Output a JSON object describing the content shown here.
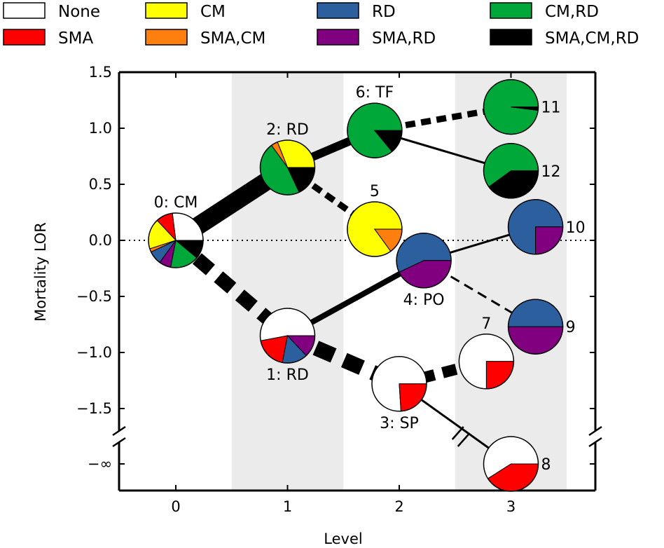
{
  "chart_data": {
    "type": "scatter",
    "subtype": "tree of pie-chart nodes",
    "xlabel": "Level",
    "ylabel": "Mortality LOR",
    "xlim": [
      -0.5,
      3.7
    ],
    "ylim": [
      -2.05,
      1.5
    ],
    "x_ticks": [
      "0",
      "1",
      "2",
      "3"
    ],
    "y_ticks": [
      {
        "value": 1.5,
        "label": "1.5"
      },
      {
        "value": 1.0,
        "label": "1.0"
      },
      {
        "value": 0.5,
        "label": "0.5"
      },
      {
        "value": 0.0,
        "label": "0.0"
      },
      {
        "value": -0.5,
        "label": "−0.5"
      },
      {
        "value": -1.0,
        "label": "−1.0"
      },
      {
        "value": -1.5,
        "label": "−1.5"
      },
      {
        "value": -2.0,
        "label": "−∞"
      }
    ],
    "shaded_levels": [
      1,
      3
    ],
    "grid": false,
    "reference_line": {
      "y": 0,
      "style": "dotted"
    },
    "axis_break": {
      "y": -1.75
    },
    "legend": {
      "position": "top",
      "entries": [
        {
          "key": "none",
          "label": "None",
          "color": "#ffffff"
        },
        {
          "key": "sma",
          "label": "SMA",
          "color": "#ff0000"
        },
        {
          "key": "cm",
          "label": "CM",
          "color": "#ffff00"
        },
        {
          "key": "sma_cm",
          "label": "SMA,CM",
          "color": "#ff7f0e"
        },
        {
          "key": "rd",
          "label": "RD",
          "color": "#2c5f9e"
        },
        {
          "key": "sma_rd",
          "label": "SMA,RD",
          "color": "#800080"
        },
        {
          "key": "cm_rd",
          "label": "CM,RD",
          "color": "#00a83a"
        },
        {
          "key": "sma_cm_rd",
          "label": "SMA,CM,RD",
          "color": "#000000"
        }
      ]
    },
    "nodes": [
      {
        "id": 0,
        "label": "0: CM",
        "x": 0.0,
        "y": 0.0,
        "label_pos": "above",
        "slices": [
          {
            "cat": "none",
            "value": 0.27
          },
          {
            "cat": "sma",
            "value": 0.1
          },
          {
            "cat": "cm",
            "value": 0.18
          },
          {
            "cat": "sma_cm",
            "value": 0.02
          },
          {
            "cat": "rd",
            "value": 0.08
          },
          {
            "cat": "sma_rd",
            "value": 0.07
          },
          {
            "cat": "cm_rd",
            "value": 0.17
          },
          {
            "cat": "sma_cm_rd",
            "value": 0.11
          }
        ]
      },
      {
        "id": 1,
        "label": "1: RD",
        "x": 1.0,
        "y": -0.85,
        "label_pos": "below",
        "slices": [
          {
            "cat": "none",
            "value": 0.53
          },
          {
            "cat": "sma",
            "value": 0.19
          },
          {
            "cat": "rd",
            "value": 0.15
          },
          {
            "cat": "sma_rd",
            "value": 0.13
          }
        ]
      },
      {
        "id": 2,
        "label": "2: RD",
        "x": 1.0,
        "y": 0.65,
        "label_pos": "above",
        "slices": [
          {
            "cat": "cm",
            "value": 0.31
          },
          {
            "cat": "sma_cm",
            "value": 0.04
          },
          {
            "cat": "cm_rd",
            "value": 0.47
          },
          {
            "cat": "sma_cm_rd",
            "value": 0.18
          }
        ]
      },
      {
        "id": 3,
        "label": "3: SP",
        "x": 2.0,
        "y": -1.28,
        "label_pos": "below",
        "slices": [
          {
            "cat": "none",
            "value": 0.76
          },
          {
            "cat": "sma",
            "value": 0.24
          }
        ]
      },
      {
        "id": 4,
        "label": "4: PO",
        "x": 2.22,
        "y": -0.18,
        "label_pos": "below",
        "slices": [
          {
            "cat": "rd",
            "value": 0.57
          },
          {
            "cat": "sma_rd",
            "value": 0.43
          }
        ]
      },
      {
        "id": 5,
        "label": "5",
        "x": 1.78,
        "y": 0.1,
        "label_pos": "above",
        "slices": [
          {
            "cat": "cm",
            "value": 0.85
          },
          {
            "cat": "sma_cm",
            "value": 0.15
          }
        ]
      },
      {
        "id": 6,
        "label": "6: TF",
        "x": 1.78,
        "y": 0.98,
        "label_pos": "above",
        "slices": [
          {
            "cat": "cm_rd",
            "value": 0.86
          },
          {
            "cat": "sma_cm_rd",
            "value": 0.14
          }
        ]
      },
      {
        "id": 7,
        "label": "7",
        "x": 2.78,
        "y": -1.08,
        "label_pos": "above",
        "slices": [
          {
            "cat": "none",
            "value": 0.75
          },
          {
            "cat": "sma",
            "value": 0.25
          }
        ]
      },
      {
        "id": 8,
        "label": "8",
        "x": 3.0,
        "y": -2.0,
        "label_pos": "right",
        "slices": [
          {
            "cat": "none",
            "value": 0.59
          },
          {
            "cat": "sma",
            "value": 0.41
          }
        ]
      },
      {
        "id": 9,
        "label": "9",
        "x": 3.22,
        "y": -0.77,
        "label_pos": "right",
        "slices": [
          {
            "cat": "rd",
            "value": 0.5
          },
          {
            "cat": "sma_rd",
            "value": 0.5
          }
        ]
      },
      {
        "id": 10,
        "label": "10",
        "x": 3.22,
        "y": 0.12,
        "label_pos": "right",
        "slices": [
          {
            "cat": "rd",
            "value": 0.75
          },
          {
            "cat": "sma_rd",
            "value": 0.25
          }
        ]
      },
      {
        "id": 11,
        "label": "11",
        "x": 3.0,
        "y": 1.19,
        "label_pos": "right",
        "slices": [
          {
            "cat": "cm_rd",
            "value": 0.98
          },
          {
            "cat": "sma_cm_rd",
            "value": 0.02
          }
        ]
      },
      {
        "id": 12,
        "label": "12",
        "x": 3.0,
        "y": 0.62,
        "label_pos": "right",
        "slices": [
          {
            "cat": "cm_rd",
            "value": 0.6
          },
          {
            "cat": "sma_cm_rd",
            "value": 0.4
          }
        ]
      }
    ],
    "edges": [
      {
        "from": 0,
        "to": 2,
        "weight": 26,
        "style": "solid"
      },
      {
        "from": 0,
        "to": 1,
        "weight": 20,
        "style": "dashed"
      },
      {
        "from": 2,
        "to": 6,
        "weight": 12,
        "style": "solid"
      },
      {
        "from": 2,
        "to": 5,
        "weight": 9,
        "style": "dashed"
      },
      {
        "from": 6,
        "to": 11,
        "weight": 9,
        "style": "dashed"
      },
      {
        "from": 6,
        "to": 12,
        "weight": 3,
        "style": "solid"
      },
      {
        "from": 1,
        "to": 4,
        "weight": 8,
        "style": "solid"
      },
      {
        "from": 1,
        "to": 3,
        "weight": 22,
        "style": "dashed"
      },
      {
        "from": 4,
        "to": 10,
        "weight": 3,
        "style": "solid"
      },
      {
        "from": 4,
        "to": 9,
        "weight": 3,
        "style": "dashed"
      },
      {
        "from": 3,
        "to": 7,
        "weight": 16,
        "style": "dashed"
      },
      {
        "from": 3,
        "to": 8,
        "weight": 3,
        "style": "solid"
      }
    ]
  }
}
